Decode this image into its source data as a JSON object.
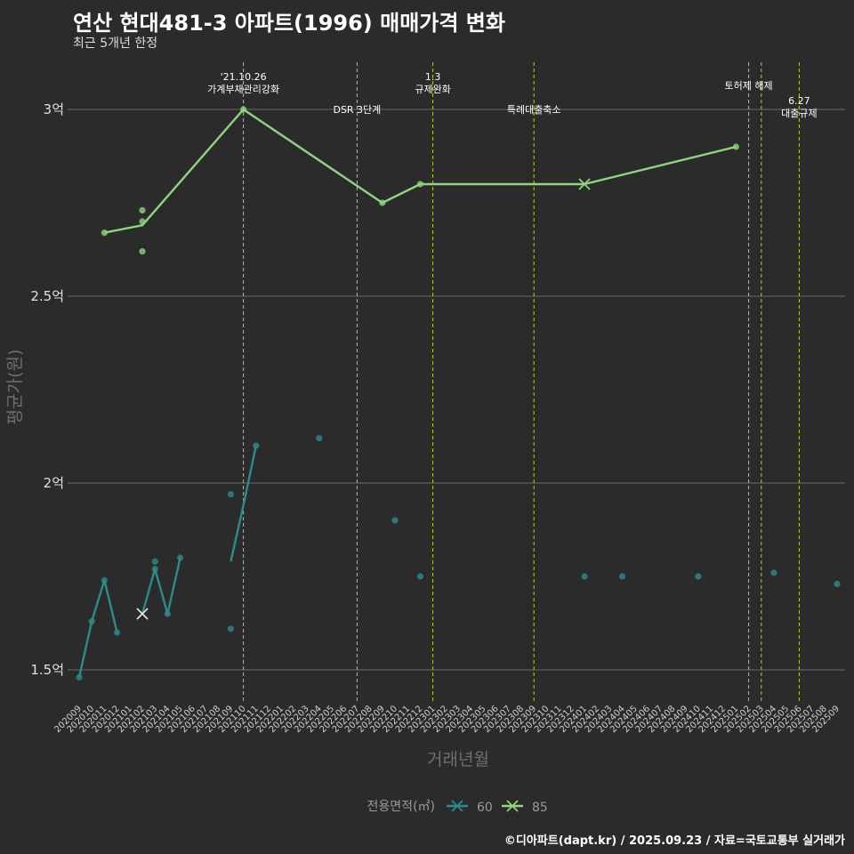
{
  "title": "연산 현대481-3 아파트(1996) 매매가격 변화",
  "subtitle": "최근 5개년 한정",
  "caption": "©디아파트(dapt.kr) / 2025.09.23 / 자료=국토교통부 실거래가",
  "chart_data": {
    "type": "line",
    "xlabel": "거래년월",
    "ylabel": "평균가(원)",
    "ylim": [
      1.42,
      3.1
    ],
    "yticks": [
      {
        "value": 1.5,
        "label": "1.5억"
      },
      {
        "value": 2.0,
        "label": "2억"
      },
      {
        "value": 2.5,
        "label": "2.5억"
      },
      {
        "value": 3.0,
        "label": "3억"
      }
    ],
    "categories": [
      "202009",
      "202010",
      "202011",
      "202012",
      "202101",
      "202102",
      "202103",
      "202104",
      "202105",
      "202106",
      "202107",
      "202108",
      "202109",
      "202110",
      "202111",
      "202112",
      "202201",
      "202202",
      "202203",
      "202204",
      "202205",
      "202206",
      "202207",
      "202208",
      "202209",
      "202210",
      "202211",
      "202212",
      "202301",
      "202302",
      "202303",
      "202304",
      "202305",
      "202306",
      "202307",
      "202308",
      "202309",
      "202310",
      "202311",
      "202312",
      "202401",
      "202402",
      "202403",
      "202404",
      "202405",
      "202406",
      "202407",
      "202408",
      "202409",
      "202410",
      "202411",
      "202412",
      "202501",
      "202502",
      "202503",
      "202504",
      "202505",
      "202506",
      "202507",
      "202508",
      "202509"
    ],
    "events": [
      {
        "month": "202110",
        "lines": [
          "'21.10.26",
          "가계부채관리강화"
        ],
        "level": 1
      },
      {
        "month": "202207",
        "lines": [
          "DSR 3단계"
        ],
        "level": 2
      },
      {
        "month": "202301",
        "lines": [
          "1.3",
          "규제완화"
        ],
        "level": 1
      },
      {
        "month": "202309",
        "lines": [
          "특례대출축소"
        ],
        "level": 2
      },
      {
        "month": "202502",
        "lines": [
          "토허제 해제"
        ],
        "level": 0
      },
      {
        "month": "202503",
        "lines": [],
        "level": 0
      },
      {
        "month": "202506",
        "lines": [
          "6.27",
          "대출규제"
        ],
        "level": 3
      }
    ],
    "legend": {
      "title": "전용면적(㎡)",
      "items": [
        "60",
        "85"
      ]
    },
    "series": [
      {
        "name": "60",
        "color": "#2e8b8b",
        "line": [
          [
            "202009",
            1.48
          ],
          [
            "202010",
            1.63
          ],
          [
            "202011",
            1.74
          ],
          [
            "202012",
            1.6
          ]
        ],
        "line2": [
          [
            "202102",
            1.65
          ],
          [
            "202103",
            1.77
          ],
          [
            "202104",
            1.65
          ],
          [
            "202105",
            1.8
          ]
        ],
        "line3": [
          [
            "202109",
            1.79
          ],
          [
            "202110",
            1.94
          ],
          [
            "202111",
            2.1
          ]
        ],
        "points": [
          [
            "202009",
            1.48
          ],
          [
            "202010",
            1.63
          ],
          [
            "202011",
            1.74
          ],
          [
            "202012",
            1.6
          ],
          [
            "202103",
            1.79
          ],
          [
            "202103",
            1.77
          ],
          [
            "202104",
            1.65
          ],
          [
            "202105",
            1.8
          ],
          [
            "202109",
            1.97
          ],
          [
            "202109",
            1.61
          ],
          [
            "202111",
            2.1
          ],
          [
            "202204",
            2.12
          ],
          [
            "202210",
            1.9
          ],
          [
            "202212",
            1.75
          ],
          [
            "202401",
            1.75
          ],
          [
            "202404",
            1.75
          ],
          [
            "202410",
            1.75
          ],
          [
            "202504",
            1.76
          ],
          [
            "202509",
            1.73
          ]
        ],
        "crosses": [
          [
            "202102",
            1.65
          ]
        ]
      },
      {
        "name": "85",
        "color": "#8fd47e",
        "line": [
          [
            "202011",
            2.67
          ],
          [
            "202102",
            2.69
          ],
          [
            "202110",
            3.0
          ],
          [
            "202209",
            2.75
          ],
          [
            "202212",
            2.8
          ],
          [
            "202401",
            2.8
          ],
          [
            "202501",
            2.9
          ]
        ],
        "points": [
          [
            "202011",
            2.67
          ],
          [
            "202102",
            2.73
          ],
          [
            "202102",
            2.7
          ],
          [
            "202102",
            2.62
          ],
          [
            "202110",
            3.0
          ],
          [
            "202209",
            2.75
          ],
          [
            "202212",
            2.8
          ],
          [
            "202501",
            2.9
          ]
        ],
        "crosses": [
          [
            "202401",
            2.8
          ]
        ]
      }
    ]
  }
}
